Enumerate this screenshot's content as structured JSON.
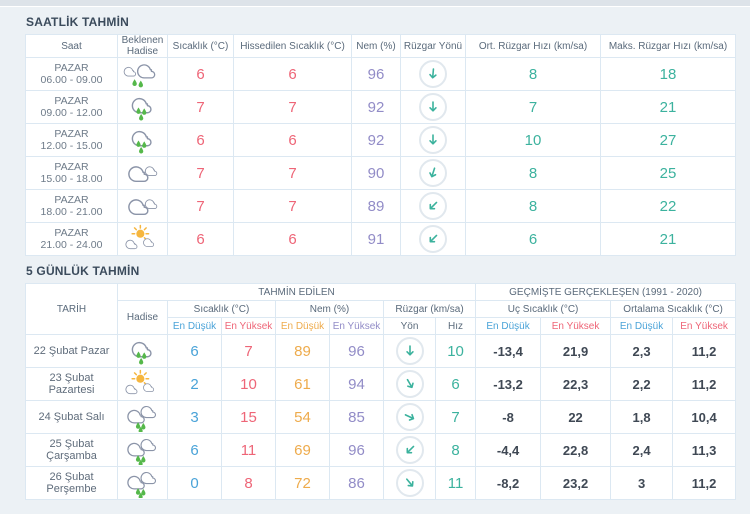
{
  "colors": {
    "page_bg": "#ecf1f5",
    "table_border": "#dce8f2",
    "title_text": "#3b4b5c",
    "header_text": "#5a6a7b",
    "muted_text": "#6e7b89",
    "temp_high_pink": "#ee6577",
    "temp_low_blue": "#4aa3d8",
    "humidity_purple": "#928cc7",
    "humidity_low_amber": "#eeab4c",
    "wind_teal": "#3cb29e",
    "history_value_dark": "#3f4854",
    "cloud_stroke": "#8b94a8",
    "rain_drop_green": "#55b84a",
    "sun_amber": "#f6b63e"
  },
  "hourly": {
    "title": "SAATLİK TAHMİN",
    "columns": [
      "Saat",
      "Beklenen Hadise",
      "Sıcaklık (°C)",
      "Hissedilen Sıcaklık (°C)",
      "Nem (%)",
      "Rüzgar Yönü",
      "Ort. Rüzgar Hızı (km/sa)",
      "Maks. Rüzgar Hızı (km/sa)"
    ],
    "rows": [
      {
        "day": "PAZAR",
        "time": "06.00 - 09.00",
        "icon": "rain-light",
        "temp": "6",
        "feels": "6",
        "humidity": "96",
        "wind_dir_deg": 5,
        "wind_avg": "8",
        "wind_max": "18"
      },
      {
        "day": "PAZAR",
        "time": "09.00 - 12.00",
        "icon": "rain",
        "temp": "7",
        "feels": "7",
        "humidity": "92",
        "wind_dir_deg": 0,
        "wind_avg": "7",
        "wind_max": "21"
      },
      {
        "day": "PAZAR",
        "time": "12.00 - 15.00",
        "icon": "rain",
        "temp": "6",
        "feels": "6",
        "humidity": "92",
        "wind_dir_deg": 0,
        "wind_avg": "10",
        "wind_max": "27"
      },
      {
        "day": "PAZAR",
        "time": "15.00 - 18.00",
        "icon": "cloudy",
        "temp": "7",
        "feels": "7",
        "humidity": "90",
        "wind_dir_deg": 18,
        "wind_avg": "8",
        "wind_max": "25"
      },
      {
        "day": "PAZAR",
        "time": "18.00 - 21.00",
        "icon": "cloudy",
        "temp": "7",
        "feels": "7",
        "humidity": "89",
        "wind_dir_deg": 45,
        "wind_avg": "8",
        "wind_max": "22"
      },
      {
        "day": "PAZAR",
        "time": "21.00 - 24.00",
        "icon": "sun-clouds",
        "temp": "6",
        "feels": "6",
        "humidity": "91",
        "wind_dir_deg": 45,
        "wind_avg": "6",
        "wind_max": "21"
      }
    ]
  },
  "daily": {
    "title": "5 GÜNLÜK TAHMİN",
    "header": {
      "date": "TARİH",
      "predicted": "TAHMİN EDİLEN",
      "past": "GEÇMİŞTE GERÇEKLEŞEN (1991 - 2020)",
      "event": "Hadise",
      "temp": "Sıcaklık (°C)",
      "humidity": "Nem (%)",
      "wind": "Rüzgar (km/sa)",
      "extreme_temp": "Uç Sıcaklık (°C)",
      "avg_temp": "Ortalama Sıcaklık (°C)",
      "low": "En Düşük",
      "high": "En Yüksek",
      "dir": "Yön",
      "speed": "Hız"
    },
    "rows": [
      {
        "date": "22 Şubat Pazar",
        "icon": "rain",
        "tmin": "6",
        "tmax": "7",
        "hmin": "89",
        "hmax": "96",
        "wind_dir_deg": 0,
        "wind": "10",
        "ext_min": "-13,4",
        "ext_max": "21,9",
        "avg_min": "2,3",
        "avg_max": "11,2"
      },
      {
        "date": "23 Şubat Pazartesi",
        "icon": "sun-clouds",
        "tmin": "2",
        "tmax": "10",
        "hmin": "61",
        "hmax": "94",
        "wind_dir_deg": -30,
        "wind": "6",
        "ext_min": "-13,2",
        "ext_max": "22,3",
        "avg_min": "2,2",
        "avg_max": "11,2"
      },
      {
        "date": "24 Şubat Salı",
        "icon": "rain-clouds",
        "tmin": "3",
        "tmax": "15",
        "hmin": "54",
        "hmax": "85",
        "wind_dir_deg": -65,
        "wind": "7",
        "ext_min": "-8",
        "ext_max": "22",
        "avg_min": "1,8",
        "avg_max": "10,4"
      },
      {
        "date": "25 Şubat Çarşamba",
        "icon": "rain-clouds",
        "tmin": "6",
        "tmax": "11",
        "hmin": "69",
        "hmax": "96",
        "wind_dir_deg": 45,
        "wind": "8",
        "ext_min": "-4,4",
        "ext_max": "22,8",
        "avg_min": "2,4",
        "avg_max": "11,3"
      },
      {
        "date": "26 Şubat Perşembe",
        "icon": "rain-clouds",
        "tmin": "0",
        "tmax": "8",
        "hmin": "72",
        "hmax": "86",
        "wind_dir_deg": -40,
        "wind": "11",
        "ext_min": "-8,2",
        "ext_max": "23,2",
        "avg_min": "3",
        "avg_max": "11,2"
      }
    ]
  }
}
